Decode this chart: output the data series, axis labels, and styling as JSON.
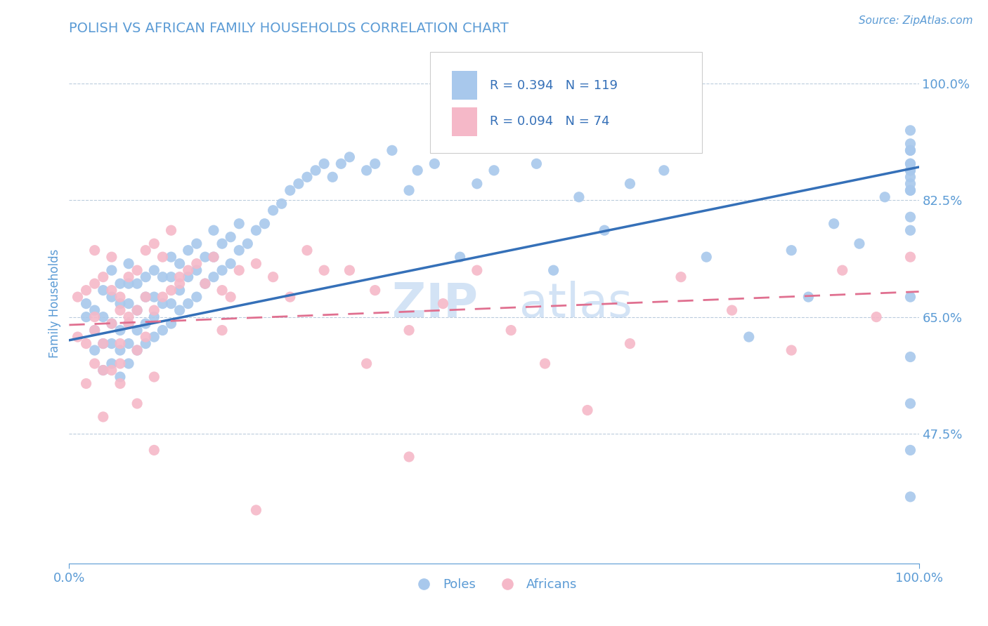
{
  "title": "POLISH VS AFRICAN FAMILY HOUSEHOLDS CORRELATION CHART",
  "source_text": "Source: ZipAtlas.com",
  "ylabel": "Family Households",
  "y_ticks": [
    0.475,
    0.65,
    0.825,
    1.0
  ],
  "y_tick_labels": [
    "47.5%",
    "65.0%",
    "82.5%",
    "100.0%"
  ],
  "xlim": [
    0.0,
    1.0
  ],
  "ylim": [
    0.28,
    1.06
  ],
  "blue_color": "#A8C8EC",
  "pink_color": "#F5B8C8",
  "blue_line_color": "#3570B8",
  "pink_line_color": "#E07090",
  "watermark_color": "#A8C8EC",
  "R_blue": 0.394,
  "N_blue": 119,
  "R_pink": 0.094,
  "N_pink": 74,
  "legend_label_blue": "Poles",
  "legend_label_pink": "Africans",
  "title_color": "#5B9BD5",
  "axis_color": "#5B9BD5",
  "tick_color": "#5B9BD5",
  "grid_color": "#BBCCDD",
  "background_color": "#FFFFFF",
  "blue_scatter_x": [
    0.02,
    0.02,
    0.03,
    0.03,
    0.03,
    0.04,
    0.04,
    0.04,
    0.04,
    0.05,
    0.05,
    0.05,
    0.05,
    0.05,
    0.06,
    0.06,
    0.06,
    0.06,
    0.06,
    0.07,
    0.07,
    0.07,
    0.07,
    0.07,
    0.07,
    0.08,
    0.08,
    0.08,
    0.08,
    0.09,
    0.09,
    0.09,
    0.09,
    0.1,
    0.1,
    0.1,
    0.1,
    0.11,
    0.11,
    0.11,
    0.12,
    0.12,
    0.12,
    0.12,
    0.13,
    0.13,
    0.13,
    0.14,
    0.14,
    0.14,
    0.15,
    0.15,
    0.15,
    0.16,
    0.16,
    0.17,
    0.17,
    0.17,
    0.18,
    0.18,
    0.19,
    0.19,
    0.2,
    0.2,
    0.21,
    0.22,
    0.23,
    0.24,
    0.25,
    0.26,
    0.27,
    0.28,
    0.29,
    0.3,
    0.31,
    0.32,
    0.33,
    0.35,
    0.36,
    0.38,
    0.4,
    0.41,
    0.43,
    0.46,
    0.48,
    0.5,
    0.53,
    0.55,
    0.57,
    0.6,
    0.63,
    0.66,
    0.7,
    0.75,
    0.8,
    0.85,
    0.87,
    0.9,
    0.93,
    0.96,
    0.99,
    0.99,
    0.99,
    0.99,
    0.99,
    0.99,
    0.99,
    0.99,
    0.99,
    0.99,
    0.99,
    0.99,
    0.99,
    0.99,
    0.99,
    0.99,
    0.99,
    0.99,
    0.99
  ],
  "blue_scatter_y": [
    0.65,
    0.67,
    0.6,
    0.63,
    0.66,
    0.57,
    0.61,
    0.65,
    0.69,
    0.58,
    0.61,
    0.64,
    0.68,
    0.72,
    0.56,
    0.6,
    0.63,
    0.67,
    0.7,
    0.58,
    0.61,
    0.64,
    0.67,
    0.7,
    0.73,
    0.6,
    0.63,
    0.66,
    0.7,
    0.61,
    0.64,
    0.68,
    0.71,
    0.62,
    0.65,
    0.68,
    0.72,
    0.63,
    0.67,
    0.71,
    0.64,
    0.67,
    0.71,
    0.74,
    0.66,
    0.69,
    0.73,
    0.67,
    0.71,
    0.75,
    0.68,
    0.72,
    0.76,
    0.7,
    0.74,
    0.71,
    0.74,
    0.78,
    0.72,
    0.76,
    0.73,
    0.77,
    0.75,
    0.79,
    0.76,
    0.78,
    0.79,
    0.81,
    0.82,
    0.84,
    0.85,
    0.86,
    0.87,
    0.88,
    0.86,
    0.88,
    0.89,
    0.87,
    0.88,
    0.9,
    0.84,
    0.87,
    0.88,
    0.74,
    0.85,
    0.87,
    0.92,
    0.88,
    0.72,
    0.83,
    0.78,
    0.85,
    0.87,
    0.74,
    0.62,
    0.75,
    0.68,
    0.79,
    0.76,
    0.83,
    0.38,
    0.45,
    0.52,
    0.59,
    0.68,
    0.78,
    0.84,
    0.88,
    0.85,
    0.9,
    0.87,
    0.84,
    0.91,
    0.8,
    0.86,
    0.87,
    0.9,
    0.88,
    0.93
  ],
  "pink_scatter_x": [
    0.01,
    0.01,
    0.02,
    0.02,
    0.02,
    0.03,
    0.03,
    0.03,
    0.04,
    0.04,
    0.05,
    0.05,
    0.05,
    0.06,
    0.06,
    0.06,
    0.07,
    0.07,
    0.08,
    0.08,
    0.09,
    0.09,
    0.1,
    0.1,
    0.11,
    0.11,
    0.12,
    0.12,
    0.13,
    0.14,
    0.15,
    0.16,
    0.17,
    0.18,
    0.19,
    0.2,
    0.22,
    0.24,
    0.26,
    0.28,
    0.3,
    0.33,
    0.36,
    0.4,
    0.44,
    0.48,
    0.52,
    0.56,
    0.61,
    0.66,
    0.72,
    0.78,
    0.85,
    0.91,
    0.95,
    0.99,
    0.22,
    0.35,
    0.4,
    0.18,
    0.1,
    0.08,
    0.06,
    0.04,
    0.03,
    0.03,
    0.04,
    0.05,
    0.06,
    0.07,
    0.08,
    0.09,
    0.1,
    0.13
  ],
  "pink_scatter_y": [
    0.62,
    0.68,
    0.55,
    0.61,
    0.69,
    0.58,
    0.65,
    0.7,
    0.61,
    0.71,
    0.57,
    0.64,
    0.74,
    0.61,
    0.68,
    0.55,
    0.64,
    0.71,
    0.66,
    0.72,
    0.62,
    0.75,
    0.66,
    0.76,
    0.68,
    0.74,
    0.69,
    0.78,
    0.7,
    0.72,
    0.73,
    0.7,
    0.74,
    0.69,
    0.68,
    0.72,
    0.73,
    0.71,
    0.68,
    0.75,
    0.72,
    0.72,
    0.69,
    0.63,
    0.67,
    0.72,
    0.63,
    0.58,
    0.51,
    0.61,
    0.71,
    0.66,
    0.6,
    0.72,
    0.65,
    0.74,
    0.36,
    0.58,
    0.44,
    0.63,
    0.45,
    0.52,
    0.66,
    0.5,
    0.75,
    0.63,
    0.57,
    0.69,
    0.58,
    0.65,
    0.6,
    0.68,
    0.56,
    0.71
  ],
  "blue_trend_x": [
    0.0,
    1.0
  ],
  "blue_trend_y": [
    0.615,
    0.875
  ],
  "pink_trend_x": [
    0.0,
    1.0
  ],
  "pink_trend_y": [
    0.638,
    0.688
  ]
}
